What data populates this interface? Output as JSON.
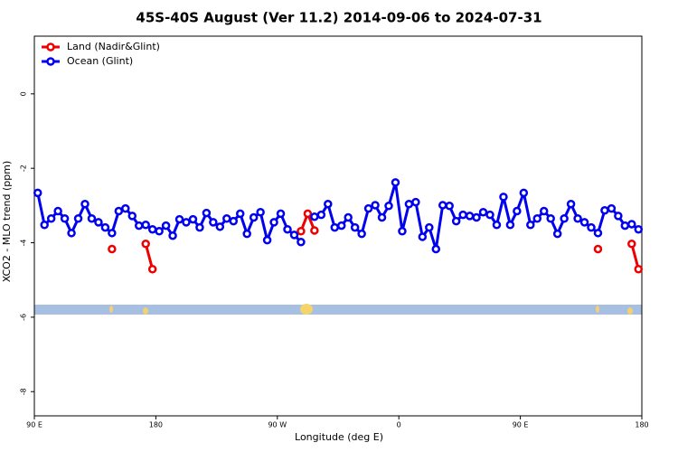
{
  "chart_data": {
    "type": "line",
    "title": "45S-40S August (Ver 11.2)   2014-09-06 to 2024-07-31",
    "xlabel": "Longitude (deg E)",
    "ylabel": "XCO2 - MLO trend (ppm)",
    "x": [
      92.5,
      97.5,
      102.5,
      107.5,
      112.5,
      117.5,
      122.5,
      127.5,
      132.5,
      137.5,
      142.5,
      147.5,
      152.5,
      157.5,
      162.5,
      167.5,
      172.5,
      177.5,
      182.5,
      187.5,
      192.5,
      197.5,
      202.5,
      207.5,
      212.5,
      217.5,
      222.5,
      227.5,
      232.5,
      237.5,
      242.5,
      247.5,
      252.5,
      257.5,
      262.5,
      267.5,
      272.5,
      277.5,
      282.5,
      287.5,
      292.5,
      297.5,
      302.5,
      307.5,
      312.5,
      317.5,
      322.5,
      327.5,
      332.5,
      337.5,
      342.5,
      347.5,
      352.5,
      357.5,
      362.5,
      367.5,
      372.5,
      377.5,
      382.5,
      387.5,
      392.5,
      397.5,
      402.5,
      407.5,
      412.5,
      417.5,
      422.5,
      427.5,
      432.5,
      437.5,
      442.5,
      447.5,
      452.5,
      457.5,
      462.5,
      467.5,
      472.5,
      477.5,
      482.5,
      487.5,
      492.5,
      497.5,
      502.5,
      507.5,
      512.5,
      517.5,
      522.5,
      527.5,
      532.5,
      537.5
    ],
    "series": [
      {
        "name": "Land (Nadir&Glint)",
        "color": "#ee0000",
        "values": [
          null,
          null,
          null,
          null,
          null,
          null,
          null,
          null,
          null,
          null,
          null,
          -4.17,
          null,
          null,
          null,
          null,
          -4.03,
          -4.71,
          null,
          null,
          null,
          null,
          null,
          null,
          null,
          null,
          null,
          null,
          null,
          null,
          null,
          null,
          null,
          null,
          null,
          null,
          null,
          null,
          null,
          -3.69,
          -3.22,
          -3.67,
          null,
          null,
          null,
          null,
          null,
          null,
          null,
          null,
          null,
          null,
          null,
          null,
          null,
          null,
          null,
          null,
          null,
          null,
          null,
          null,
          null,
          null,
          null,
          null,
          null,
          null,
          null,
          null,
          null,
          null,
          null,
          null,
          null,
          null,
          null,
          null,
          null,
          null,
          null,
          null,
          null,
          -4.17,
          null,
          null,
          null,
          null,
          -4.03,
          -4.71
        ]
      },
      {
        "name": "Ocean (Glint)",
        "color": "#0000ee",
        "values": [
          -2.66,
          -3.52,
          -3.35,
          -3.15,
          -3.35,
          -3.74,
          -3.35,
          -2.96,
          -3.35,
          -3.45,
          -3.59,
          -3.74,
          -3.15,
          -3.08,
          -3.28,
          -3.54,
          -3.52,
          -3.64,
          -3.69,
          -3.54,
          -3.81,
          -3.37,
          -3.45,
          -3.37,
          -3.59,
          -3.2,
          -3.45,
          -3.57,
          -3.35,
          -3.42,
          -3.22,
          -3.76,
          -3.32,
          -3.18,
          -3.93,
          -3.45,
          -3.22,
          -3.64,
          -3.79,
          -3.98,
          null,
          -3.3,
          -3.25,
          -2.96,
          -3.59,
          -3.54,
          -3.32,
          -3.59,
          -3.76,
          -3.08,
          -2.99,
          -3.32,
          -3.01,
          -2.38,
          -3.69,
          -2.96,
          -2.91,
          -3.84,
          -3.59,
          -4.17,
          -2.99,
          -3.01,
          -3.42,
          -3.25,
          -3.28,
          -3.32,
          -3.18,
          -3.25,
          -3.52,
          -2.77,
          -3.52,
          -3.15,
          -2.66,
          -3.52,
          -3.35,
          -3.15,
          -3.35,
          -3.76,
          -3.35,
          -2.96,
          -3.35,
          -3.45,
          -3.59,
          -3.74,
          -3.13,
          -3.08,
          -3.28,
          -3.54,
          -3.5,
          -3.64
        ]
      }
    ],
    "xlim": [
      90,
      540
    ],
    "xticks": [
      {
        "value": 90,
        "label": "90 E"
      },
      180,
      {
        "value": 270,
        "label": "90 W"
      },
      {
        "value": 360,
        "label": "0"
      },
      {
        "value": 450,
        "label": "90 E"
      },
      {
        "value": 540,
        "label": "180"
      }
    ],
    "ylim": [
      -8.65,
      1.55
    ],
    "yticks": [
      0,
      -2,
      -4,
      -6,
      -8
    ],
    "legend": "upper-left"
  }
}
